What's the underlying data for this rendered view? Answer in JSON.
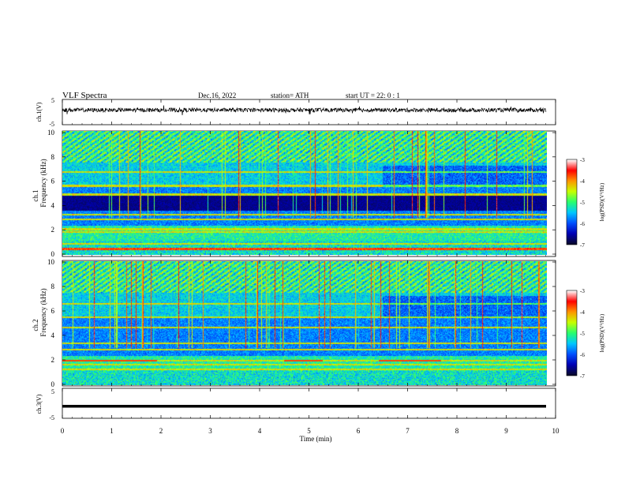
{
  "header": {
    "title": "VLF  Spectra",
    "date": "Dec.16, 2022",
    "station": "station= ATH",
    "start": "start  UT  =    22: 0   : 1"
  },
  "chart_data": [
    {
      "type": "line",
      "name": "ch1-signal",
      "ylabel": "ch.1(V)",
      "yticks": [
        "5",
        "-5"
      ],
      "ylim": [
        -5,
        5
      ],
      "xlim": [
        0,
        10
      ],
      "description_level": 0.8,
      "color": "#000000"
    },
    {
      "type": "heatmap",
      "name": "ch1-spectrogram",
      "ylabel": [
        "ch.1",
        "Frequency  (kHz)"
      ],
      "yticks": [
        "0",
        "2",
        "4",
        "6",
        "8",
        "10"
      ],
      "ylim": [
        0,
        10
      ],
      "xlim": [
        0,
        9.8
      ],
      "colorbar": {
        "label": "log(PSD)(V²/Hz)",
        "ticks": [
          "-3",
          "-4",
          "-5",
          "-6",
          "-7"
        ],
        "range": [
          -7,
          -3
        ]
      }
    },
    {
      "type": "heatmap",
      "name": "ch2-spectrogram",
      "ylabel": [
        "ch.2",
        "Frequency  (kHz)"
      ],
      "yticks": [
        "0",
        "2",
        "4",
        "6",
        "8",
        "10"
      ],
      "ylim": [
        0,
        10
      ],
      "xlim": [
        0,
        9.8
      ],
      "colorbar": {
        "label": "log(PSD)(V²/Hz)",
        "ticks": [
          "-3",
          "-4",
          "-5",
          "-6",
          "-7"
        ],
        "range": [
          -7,
          -3
        ]
      }
    },
    {
      "type": "line",
      "name": "ch3-signal",
      "ylabel": "ch.3(V)",
      "yticks": [
        "5",
        "-5"
      ],
      "ylim": [
        -5,
        5
      ],
      "xlim": [
        0,
        10
      ],
      "level": -1,
      "color": "#000000"
    }
  ],
  "xaxis": {
    "label": "Time  (min)",
    "ticks": [
      "0",
      "1",
      "2",
      "3",
      "4",
      "5",
      "6",
      "7",
      "8",
      "9",
      "10"
    ],
    "range": [
      0,
      10
    ]
  },
  "colorscale": [
    "#0a0a2a",
    "#0000b4",
    "#0050ff",
    "#00c8ff",
    "#28ff6e",
    "#c8ff00",
    "#ff9600",
    "#ff0000",
    "#ffffff"
  ]
}
